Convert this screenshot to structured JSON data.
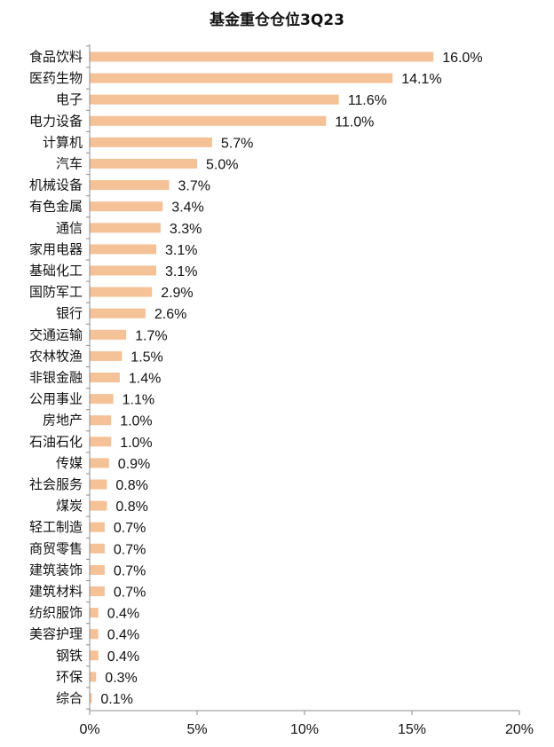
{
  "chart_data": {
    "type": "bar",
    "orientation": "horizontal",
    "title": "基金重仓仓位3Q23",
    "categories": [
      "食品饮料",
      "医药生物",
      "电子",
      "电力设备",
      "计算机",
      "汽车",
      "机械设备",
      "有色金属",
      "通信",
      "家用电器",
      "基础化工",
      "国防军工",
      "银行",
      "交通运输",
      "农林牧渔",
      "非银金融",
      "公用事业",
      "房地产",
      "石油石化",
      "传媒",
      "社会服务",
      "煤炭",
      "轻工制造",
      "商贸零售",
      "建筑装饰",
      "建筑材料",
      "纺织服饰",
      "美容护理",
      "钢铁",
      "环保",
      "综合"
    ],
    "values": [
      16.0,
      14.1,
      11.6,
      11.0,
      5.7,
      5.0,
      3.7,
      3.4,
      3.3,
      3.1,
      3.1,
      2.9,
      2.6,
      1.7,
      1.5,
      1.4,
      1.1,
      1.0,
      1.0,
      0.9,
      0.8,
      0.8,
      0.7,
      0.7,
      0.7,
      0.7,
      0.4,
      0.4,
      0.4,
      0.3,
      0.1
    ],
    "value_labels": [
      "16.0%",
      "14.1%",
      "11.6%",
      "11.0%",
      "5.7%",
      "5.0%",
      "3.7%",
      "3.4%",
      "3.3%",
      "3.1%",
      "3.1%",
      "2.9%",
      "2.6%",
      "1.7%",
      "1.5%",
      "1.4%",
      "1.1%",
      "1.0%",
      "1.0%",
      "0.9%",
      "0.8%",
      "0.8%",
      "0.7%",
      "0.7%",
      "0.7%",
      "0.7%",
      "0.4%",
      "0.4%",
      "0.4%",
      "0.3%",
      "0.1%"
    ],
    "xlim": [
      0,
      20
    ],
    "xticks": [
      0,
      5,
      10,
      15,
      20
    ],
    "xtick_labels": [
      "0%",
      "5%",
      "10%",
      "15%",
      "20%"
    ],
    "xlabel": "",
    "ylabel": "",
    "grid": false,
    "legend": "none",
    "bar_color": "#F5C196",
    "axis_color": "#8C8C8C"
  }
}
